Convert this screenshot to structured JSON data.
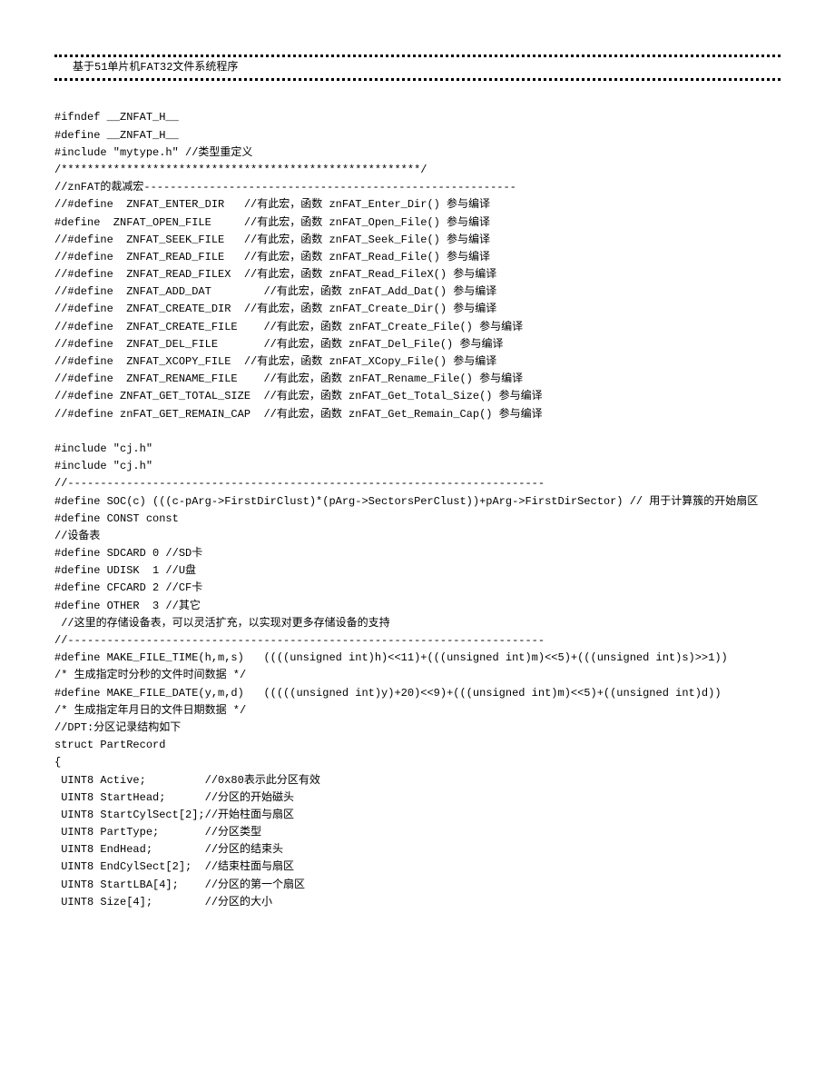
{
  "title": "基于51单片机FAT32文件系统程序",
  "code_lines": [
    "",
    "#ifndef __ZNFAT_H__",
    "#define __ZNFAT_H__",
    "#include \"mytype.h\" //类型重定义",
    "/*******************************************************/",
    "//znFAT的裁减宏---------------------------------------------------------",
    "//#define  ZNFAT_ENTER_DIR   //有此宏，函数 znFAT_Enter_Dir() 参与编译",
    "#define  ZNFAT_OPEN_FILE     //有此宏，函数 znFAT_Open_File() 参与编译",
    "//#define  ZNFAT_SEEK_FILE   //有此宏，函数 znFAT_Seek_File() 参与编译",
    "//#define  ZNFAT_READ_FILE   //有此宏，函数 znFAT_Read_File() 参与编译",
    "//#define  ZNFAT_READ_FILEX  //有此宏，函数 znFAT_Read_FileX() 参与编译",
    "//#define  ZNFAT_ADD_DAT        //有此宏，函数 znFAT_Add_Dat() 参与编译",
    "//#define  ZNFAT_CREATE_DIR  //有此宏，函数 znFAT_Create_Dir() 参与编译",
    "//#define  ZNFAT_CREATE_FILE    //有此宏，函数 znFAT_Create_File() 参与编译",
    "//#define  ZNFAT_DEL_FILE       //有此宏，函数 znFAT_Del_File() 参与编译",
    "//#define  ZNFAT_XCOPY_FILE  //有此宏，函数 znFAT_XCopy_File() 参与编译",
    "//#define  ZNFAT_RENAME_FILE    //有此宏，函数 znFAT_Rename_File() 参与编译",
    "//#define ZNFAT_GET_TOTAL_SIZE  //有此宏，函数 znFAT_Get_Total_Size() 参与编译",
    "//#define znFAT_GET_REMAIN_CAP  //有此宏，函数 znFAT_Get_Remain_Cap() 参与编译",
    "",
    "#include \"cj.h\"",
    "#include \"cj.h\"",
    "//-------------------------------------------------------------------------",
    "#define SOC(c) (((c-pArg->FirstDirClust)*(pArg->SectorsPerClust))+pArg->FirstDirSector) // 用于计算簇的开始扇区",
    "#define CONST const",
    "//设备表",
    "#define SDCARD 0 //SD卡",
    "#define UDISK  1 //U盘",
    "#define CFCARD 2 //CF卡",
    "#define OTHER  3 //其它",
    " //这里的存储设备表，可以灵活扩充，以实现对更多存储设备的支持",
    "//-------------------------------------------------------------------------",
    "#define MAKE_FILE_TIME(h,m,s)   ((((unsigned int)h)<<11)+(((unsigned int)m)<<5)+(((unsigned int)s)>>1))  ",
    "/* 生成指定时分秒的文件时间数据 */",
    "#define MAKE_FILE_DATE(y,m,d)   (((((unsigned int)y)+20)<<9)+(((unsigned int)m)<<5)+((unsigned int)d))   ",
    "/* 生成指定年月日的文件日期数据 */",
    "//DPT:分区记录结构如下",
    "struct PartRecord",
    "{",
    " UINT8 Active;         //0x80表示此分区有效",
    " UINT8 StartHead;      //分区的开始磁头",
    " UINT8 StartCylSect[2];//开始柱面与扇区",
    " UINT8 PartType;       //分区类型",
    " UINT8 EndHead;        //分区的结束头",
    " UINT8 EndCylSect[2];  //结束柱面与扇区",
    " UINT8 StartLBA[4];    //分区的第一个扇区",
    " UINT8 Size[4];        //分区的大小"
  ]
}
